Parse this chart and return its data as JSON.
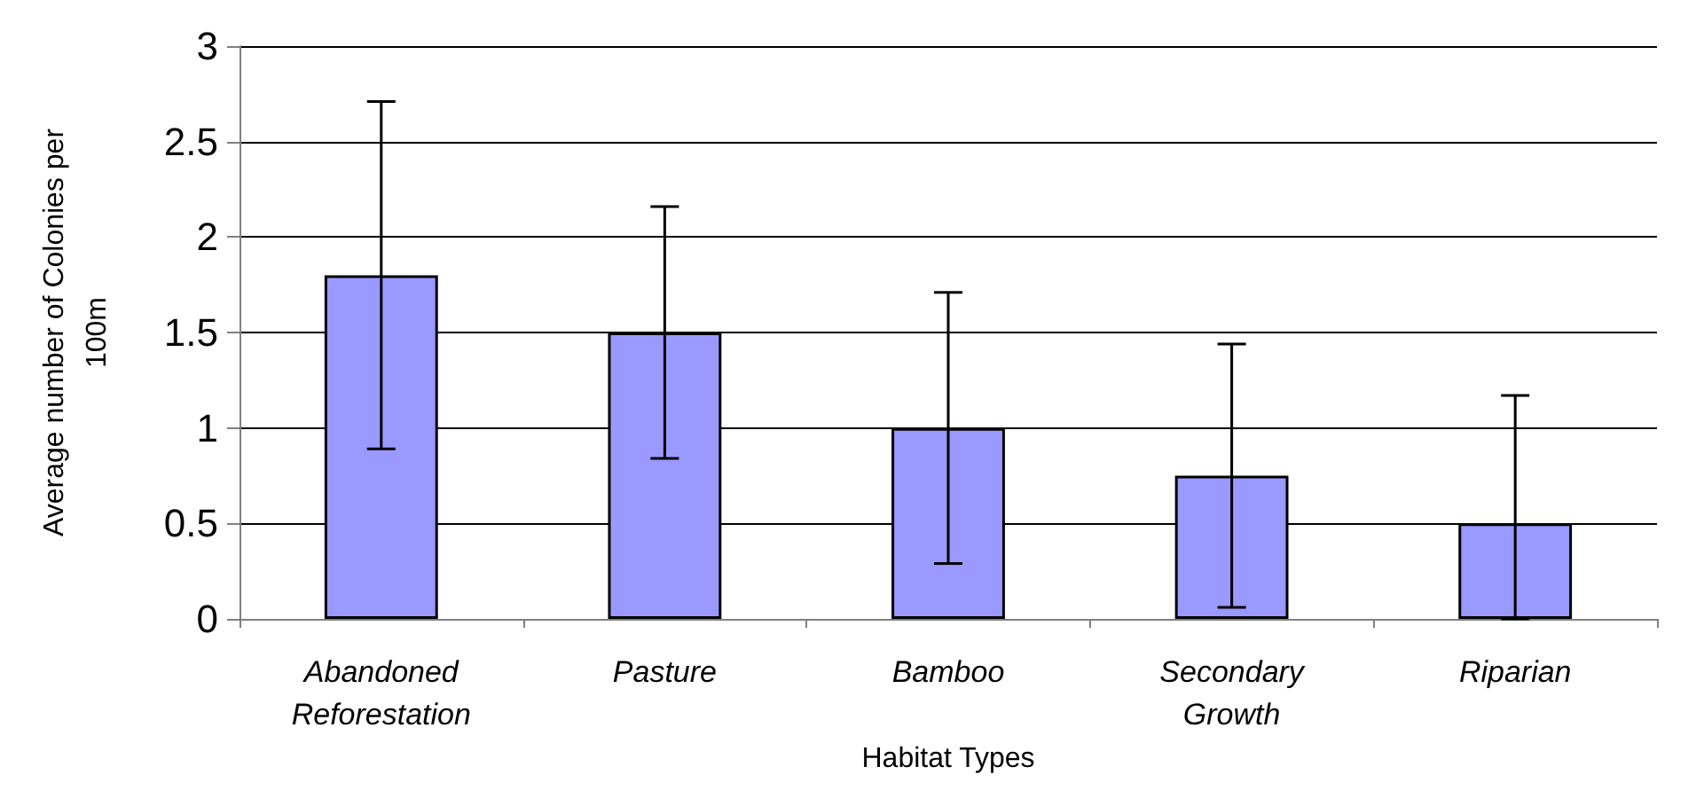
{
  "chart_data": {
    "type": "bar",
    "xlabel": "Habitat Types",
    "ylabel": "Average number of Colonies per\n100m",
    "categories": [
      "Abandoned\nReforestation",
      "Pasture",
      "Bamboo",
      "Secondary\nGrowth",
      "Riparian"
    ],
    "values": [
      1.8,
      1.5,
      1.0,
      0.75,
      0.5
    ],
    "errors": [
      0.91,
      0.66,
      0.71,
      0.69,
      [
        0,
        1.17
      ]
    ],
    "color": "#9999ff",
    "ylim": [
      0,
      3
    ],
    "yticks": [
      0,
      0.5,
      1,
      1.5,
      2,
      2.5,
      3
    ],
    "grid": "y"
  }
}
